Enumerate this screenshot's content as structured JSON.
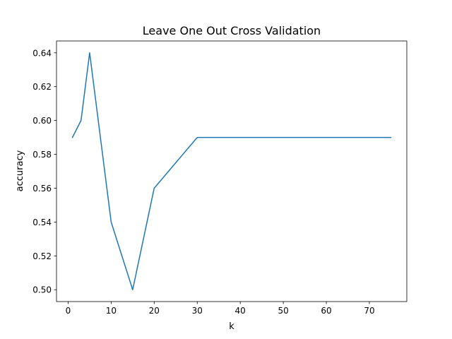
{
  "chart_data": {
    "type": "line",
    "title": "Leave One Out Cross Validation",
    "xlabel": "k",
    "ylabel": "accuracy",
    "xlim": [
      -2.7,
      78.7
    ],
    "ylim": [
      0.493,
      0.647
    ],
    "x_ticks": [
      0,
      10,
      20,
      30,
      40,
      50,
      60,
      70
    ],
    "y_ticks": [
      0.5,
      0.52,
      0.54,
      0.56,
      0.58,
      0.6,
      0.62,
      0.64
    ],
    "grid": false,
    "series": [
      {
        "color": "#1f77b4",
        "x": [
          1,
          3,
          5,
          10,
          15,
          20,
          30,
          75
        ],
        "y": [
          0.59,
          0.6,
          0.64,
          0.54,
          0.5,
          0.56,
          0.59,
          0.59
        ]
      }
    ]
  }
}
